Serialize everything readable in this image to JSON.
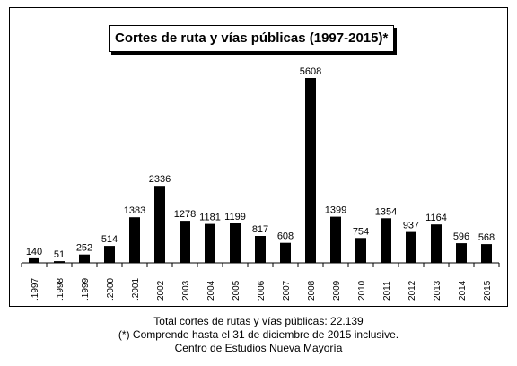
{
  "chart_data": {
    "type": "bar",
    "title": "Cortes de ruta y vías públicas (1997-2015)*",
    "categories": [
      ".1997",
      ".1998",
      ".1999",
      ".2000",
      ".2001",
      "2002",
      "2003",
      "2004",
      "2005",
      "2006",
      "2007",
      "2008",
      "2009",
      "2010",
      "2011",
      "2012",
      "2013",
      "2014",
      "2015"
    ],
    "values": [
      140,
      51,
      252,
      514,
      1383,
      2336,
      1278,
      1181,
      1199,
      817,
      608,
      5608,
      1399,
      754,
      1354,
      937,
      1164,
      596,
      568
    ],
    "value_labels": [
      "140",
      "51",
      "252",
      "514",
      "1383",
      "2336",
      "1278",
      "1181",
      "1199",
      "817",
      "608",
      "5608",
      "1399",
      "754",
      "1354",
      "937",
      "1164",
      "596",
      "568"
    ],
    "xlabel": "",
    "ylabel": "",
    "ylim": [
      0,
      5608
    ],
    "grid": false,
    "legend": "none",
    "bar_color": "#000000"
  },
  "footer": {
    "total": "Total cortes de rutas y vías públicas: 22.139",
    "note": "(*) Comprende hasta el 31 de diciembre de 2015 inclusive.",
    "source": "Centro de Estudios Nueva Mayoría"
  }
}
